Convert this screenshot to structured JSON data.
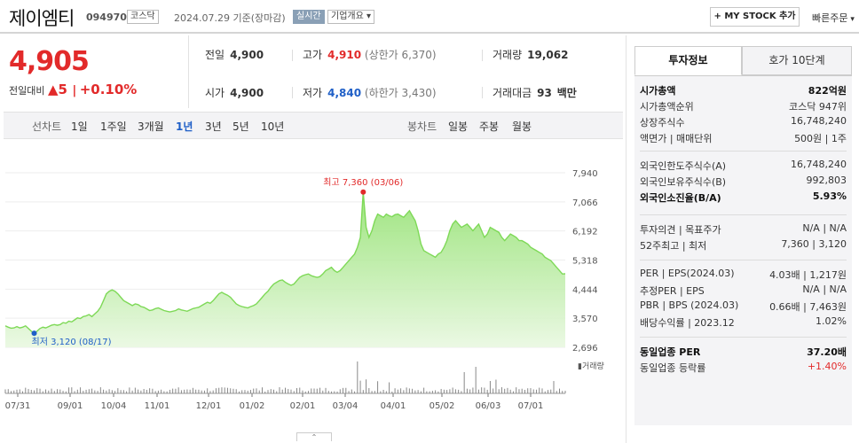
{
  "header": {
    "name": "제이엠티",
    "code": "094970",
    "market": "코스닥",
    "date_text": "2024.07.29  기준(장마감)",
    "live_label": "실시간",
    "company_info": "기업개요",
    "mystock_label": "+ MY STOCK 추가",
    "fast_order": "빠른주문"
  },
  "price": {
    "current": "4,905",
    "change_label": "전일대비",
    "change_arrow": "▲",
    "change_value": "5",
    "change_pct": "+0.10%"
  },
  "stats": {
    "prev_label": "전일",
    "prev_value": "4,900",
    "high_label": "고가",
    "high_value": "4,910",
    "upper_limit": "(상한가 6,370)",
    "volume_label": "거래량",
    "volume_value": "19,062",
    "open_label": "시가",
    "open_value": "4,900",
    "low_label": "저가",
    "low_value": "4,840",
    "lower_limit": "(하한가 3,430)",
    "amount_label": "거래대금",
    "amount_value": "93",
    "amount_unit": "백만"
  },
  "toolbar": {
    "line_chart_label": "선차트",
    "periods": [
      "1일",
      "1주일",
      "3개월",
      "1년",
      "3년",
      "5년",
      "10년"
    ],
    "selected_period": "1년",
    "candle_label": "봉차트",
    "candles": [
      "일봉",
      "주봉",
      "월봉"
    ]
  },
  "chart_data": {
    "type": "area",
    "y_ticks": [
      "7,940",
      "7,066",
      "6,192",
      "5,318",
      "4,444",
      "3,570",
      "2,696"
    ],
    "ylim": [
      2696,
      7940
    ],
    "x_ticks": [
      "07/31",
      "09/01",
      "10/04",
      "11/01",
      "12/01",
      "01/02",
      "02/01",
      "03/04",
      "04/01",
      "05/02",
      "06/03",
      "07/01"
    ],
    "max_label": "최고 7,360 (03/06)",
    "min_label": "최저 3,120 (08/17)",
    "volume_legend": "거래량",
    "color": "#7ed957",
    "values": [
      3340,
      3300,
      3270,
      3280,
      3320,
      3280,
      3300,
      3340,
      3260,
      3180,
      3120,
      3180,
      3260,
      3300,
      3280,
      3320,
      3360,
      3380,
      3360,
      3380,
      3440,
      3420,
      3480,
      3460,
      3520,
      3580,
      3560,
      3620,
      3640,
      3680,
      3620,
      3700,
      3780,
      3900,
      4100,
      4300,
      4380,
      4420,
      4380,
      4300,
      4200,
      4100,
      4050,
      4000,
      3950,
      4000,
      3980,
      3920,
      3900,
      3850,
      3800,
      3820,
      3860,
      3880,
      3840,
      3800,
      3780,
      3760,
      3780,
      3800,
      3850,
      3820,
      3800,
      3780,
      3820,
      3860,
      3880,
      3900,
      3950,
      4000,
      4050,
      4020,
      4100,
      4200,
      4300,
      4350,
      4300,
      4260,
      4200,
      4100,
      4000,
      3950,
      3920,
      3900,
      3880,
      3920,
      3950,
      4000,
      4100,
      4200,
      4300,
      4380,
      4500,
      4600,
      4650,
      4700,
      4720,
      4650,
      4600,
      4560,
      4600,
      4700,
      4800,
      4850,
      4880,
      4900,
      4850,
      4820,
      4800,
      4820,
      4900,
      5000,
      5050,
      5100,
      5000,
      4950,
      5000,
      5100,
      5200,
      5300,
      5400,
      5500,
      5700,
      6000,
      7360,
      6300,
      6000,
      6200,
      6500,
      6700,
      6650,
      6600,
      6700,
      6650,
      6620,
      6680,
      6700,
      6650,
      6600,
      6700,
      6800,
      6650,
      6500,
      6200,
      5800,
      5600,
      5550,
      5500,
      5450,
      5400,
      5500,
      5550,
      5700,
      5900,
      6200,
      6400,
      6500,
      6400,
      6300,
      6350,
      6400,
      6300,
      6200,
      6300,
      6400,
      6200,
      6000,
      6100,
      6300,
      6250,
      6200,
      6150,
      6000,
      5900,
      6000,
      6100,
      6050,
      6000,
      5900,
      5900,
      5850,
      5800,
      5700,
      5650,
      5600,
      5550,
      5500,
      5400,
      5350,
      5300,
      5200,
      5100,
      5000,
      4900,
      4905
    ]
  },
  "right_panel": {
    "tab_active": "투자정보",
    "tab_other": "호가 10단계",
    "rows": [
      {
        "k": "시가총액",
        "v": "822억원",
        "bold": true
      },
      {
        "k": "시가총액순위",
        "v": "코스닥 947위"
      },
      {
        "k": "상장주식수",
        "v": "16,748,240"
      },
      {
        "k": "액면가 | 매매단위",
        "v": "500원 | 1주"
      },
      {
        "k": "외국인한도주식수(A)",
        "v": "16,748,240"
      },
      {
        "k": "외국인보유주식수(B)",
        "v": "992,803"
      },
      {
        "k": "외국인소진율(B/A)",
        "v": "5.93%",
        "bold": true
      },
      {
        "k": "투자의견 | 목표주가",
        "v": "N/A | N/A"
      },
      {
        "k": "52주최고 | 최저",
        "v": "7,360 | 3,120"
      },
      {
        "k": "PER | EPS(2024.03)",
        "v": "4.03배 | 1,217원"
      },
      {
        "k": "추정PER | EPS",
        "v": "N/A | N/A"
      },
      {
        "k": "PBR | BPS (2024.03)",
        "v": "0.66배 | 7,463원"
      },
      {
        "k": "배당수익률 | 2023.12",
        "v": "1.02%"
      },
      {
        "k": "동일업종 PER",
        "v": "37.20배",
        "bold": true
      },
      {
        "k": "동일업종 등락률",
        "v": "+1.40%",
        "red": true
      }
    ]
  }
}
